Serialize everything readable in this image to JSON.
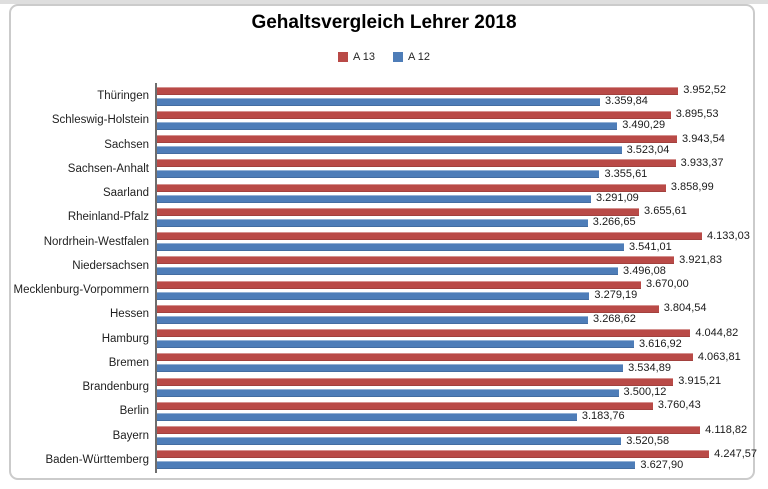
{
  "frame": {
    "background": "#ffffff",
    "border_color": "#cbcbcb"
  },
  "chart_data": {
    "type": "bar",
    "orientation": "horizontal",
    "title": "Gehaltsvergleich Lehrer 2018",
    "xlabel": "",
    "ylabel": "",
    "xlim": [
      0,
      4550
    ],
    "grid": false,
    "legend_position": "top-center",
    "value_labels": "outside-end",
    "categories": [
      "Thüringen",
      "Schleswig-Holstein",
      "Sachsen",
      "Sachsen-Anhalt",
      "Saarland",
      "Rheinland-Pfalz",
      "Nordrhein-Westfalen",
      "Niedersachsen",
      "Mecklenburg-Vorpommern",
      "Hessen",
      "Hamburg",
      "Bremen",
      "Brandenburg",
      "Berlin",
      "Bayern",
      "Baden-Württemberg"
    ],
    "series": [
      {
        "name": "A 13",
        "color": "#b94a47",
        "values": [
          3952.52,
          3895.53,
          3943.54,
          3933.37,
          3858.99,
          3655.61,
          4133.03,
          3921.83,
          3670.0,
          3804.54,
          4044.82,
          4063.81,
          3915.21,
          3760.43,
          4118.82,
          4247.57
        ],
        "labels": [
          "3.952,52",
          "3.895,53",
          "3.943,54",
          "3.933,37",
          "3.858,99",
          "3.655,61",
          "4.133,03",
          "3.921,83",
          "3.670,00",
          "3.804,54",
          "4.044,82",
          "4.063,81",
          "3.915,21",
          "3.760,43",
          "4.118,82",
          "4.247,57"
        ]
      },
      {
        "name": "A 12",
        "color": "#4e7db8",
        "values": [
          3359.84,
          3490.29,
          3523.04,
          3355.61,
          3291.09,
          3266.65,
          3541.01,
          3496.08,
          3279.19,
          3268.62,
          3616.92,
          3534.89,
          3500.12,
          3183.76,
          3520.58,
          3627.9
        ],
        "labels": [
          "3.359,84",
          "3.490,29",
          "3.523,04",
          "3.355,61",
          "3.291,09",
          "3.266,65",
          "3.541,01",
          "3.496,08",
          "3.279,19",
          "3.268,62",
          "3.616,92",
          "3.534,89",
          "3.500,12",
          "3.183,76",
          "3.520,58",
          "3.627,90"
        ]
      }
    ]
  }
}
